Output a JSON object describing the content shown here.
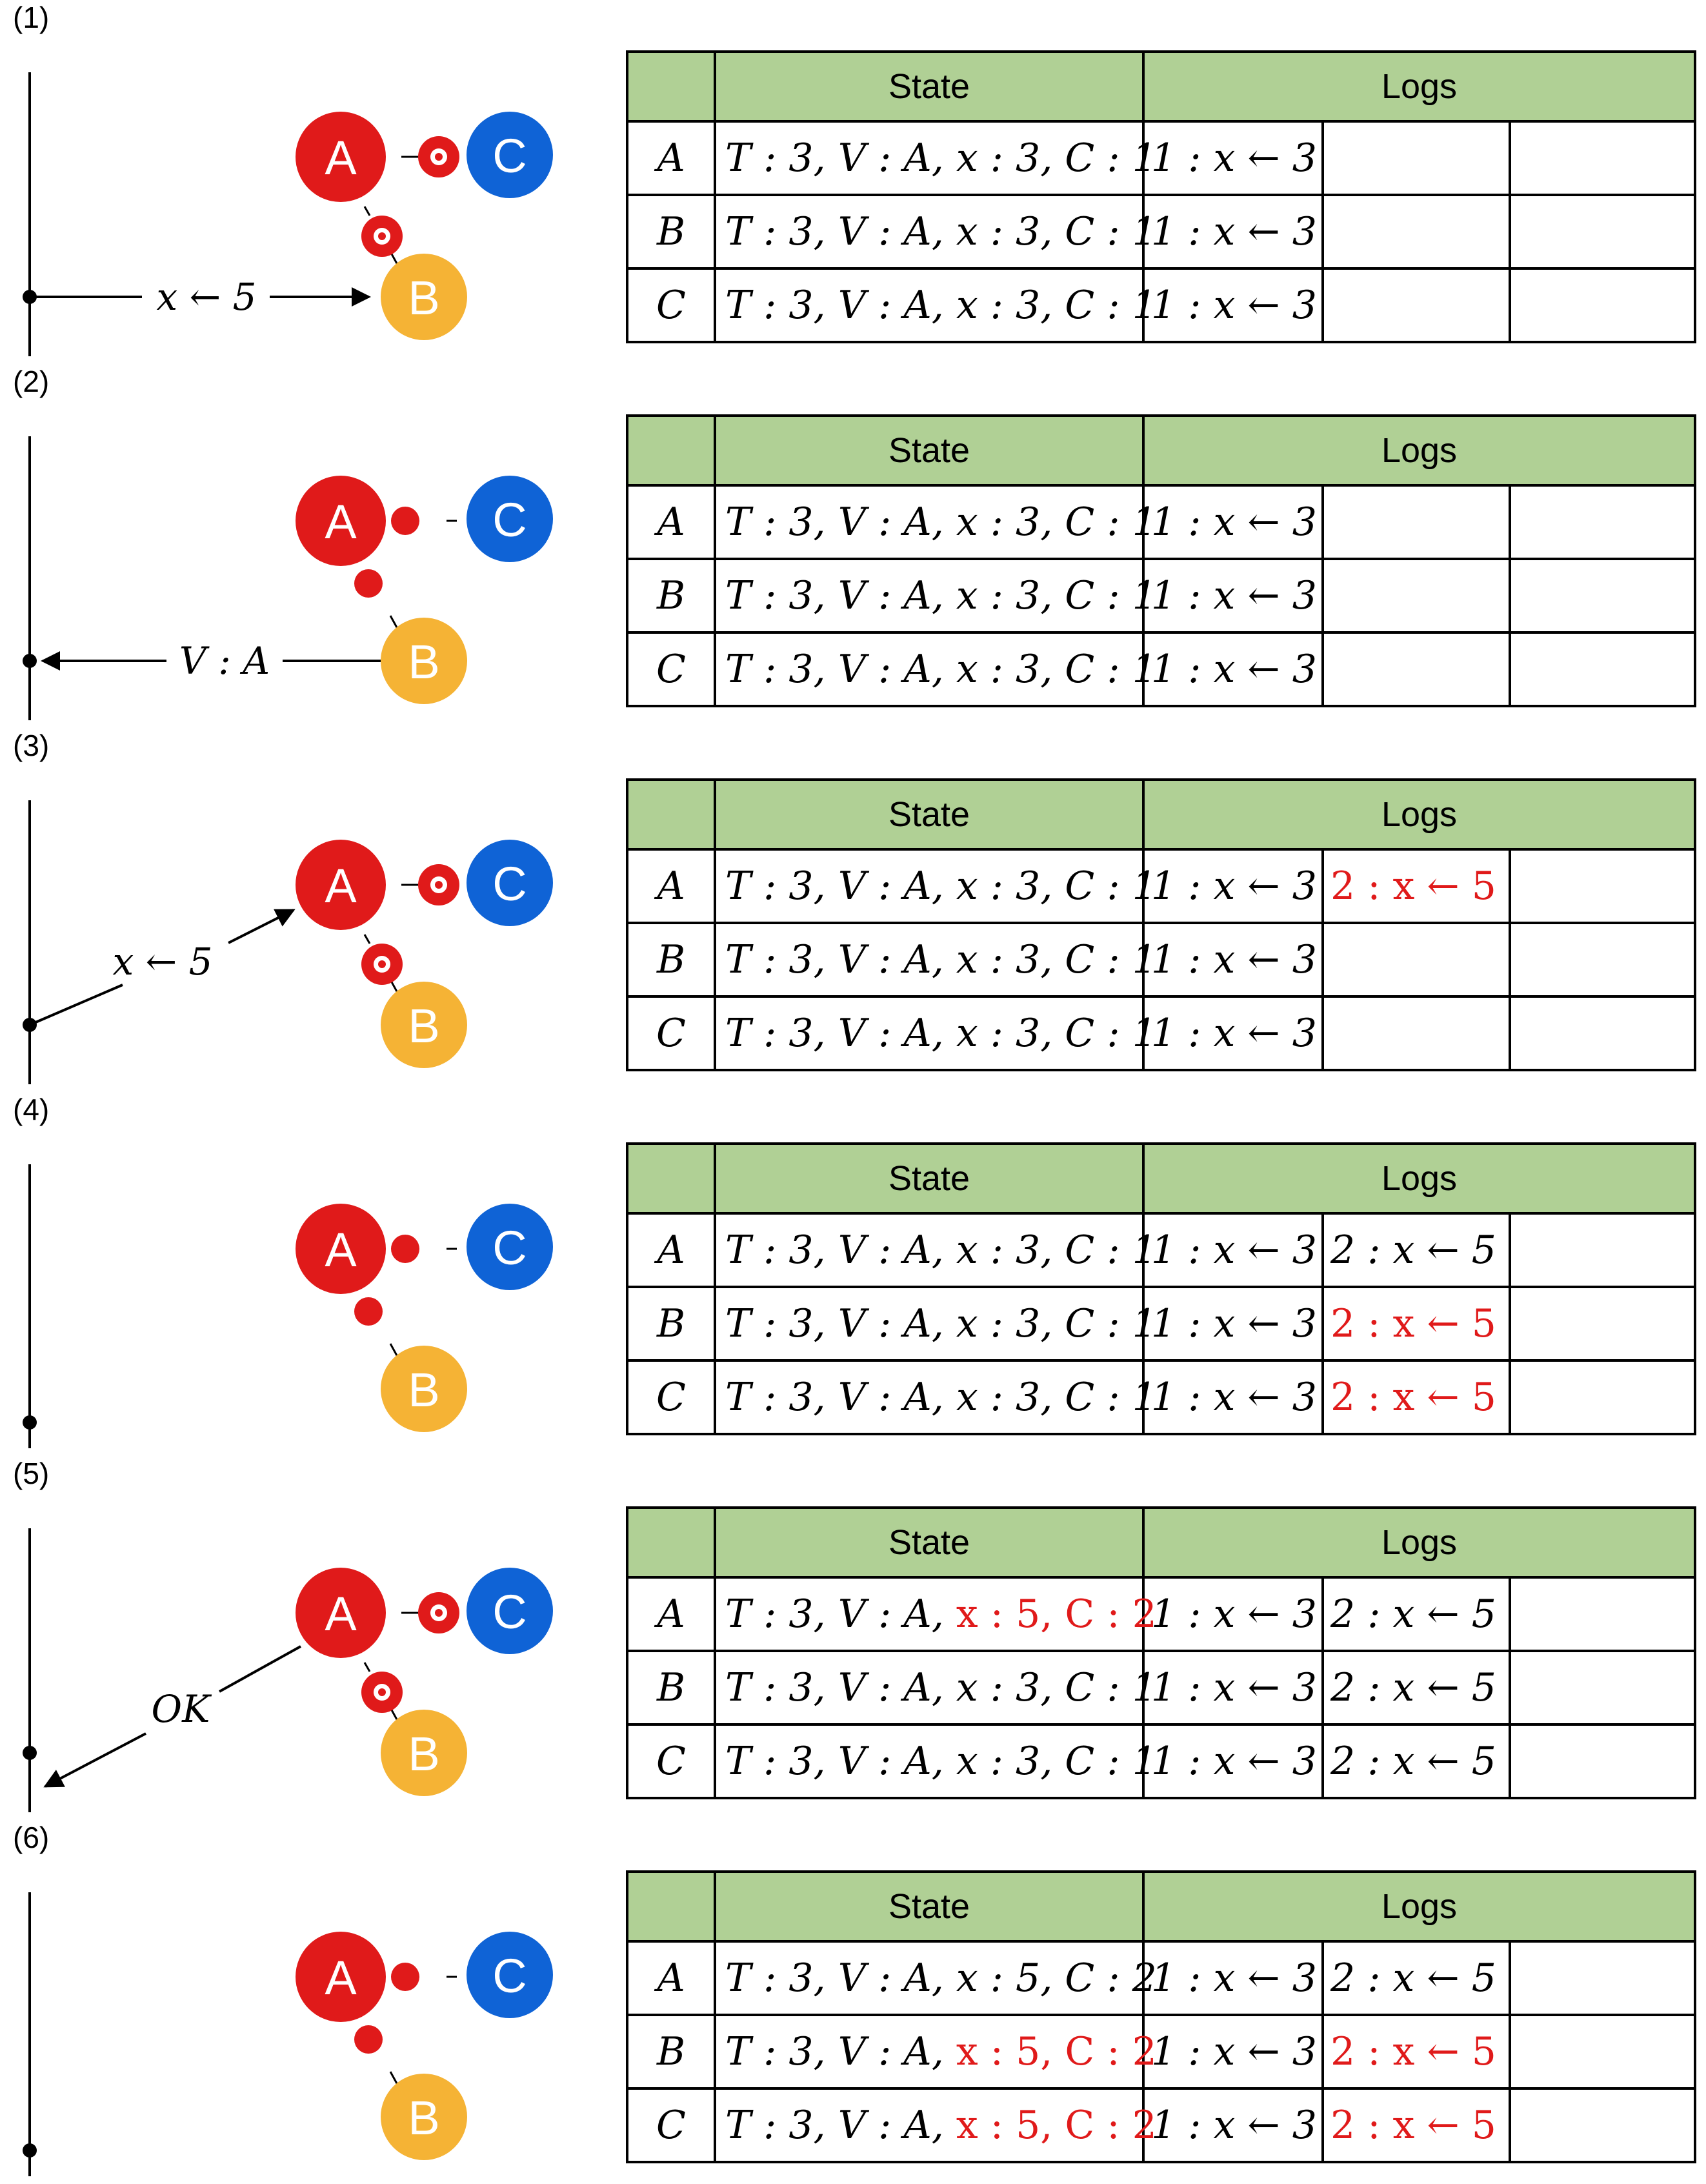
{
  "steps": [
    {
      "label": "(1)",
      "message": {
        "text": "x ← 5",
        "direction": "client-to-B"
      },
      "rings": {
        "ac": true,
        "ab": true
      },
      "rows": [
        {
          "name": "A",
          "state": "T : 3, V : A, x :  3, C : 1",
          "state_red": false,
          "logs": [
            "1 : x ← 3",
            "",
            ""
          ],
          "log_red": [
            false,
            false,
            false
          ]
        },
        {
          "name": "B",
          "state": "T : 3, V : A, x :  3, C : 1",
          "state_red": false,
          "logs": [
            "1 : x ← 3",
            "",
            ""
          ],
          "log_red": [
            false,
            false,
            false
          ]
        },
        {
          "name": "C",
          "state": "T : 3, V : A, x :  3, C : 1",
          "state_red": false,
          "logs": [
            "1 : x ← 3",
            "",
            ""
          ],
          "log_red": [
            false,
            false,
            false
          ]
        }
      ]
    },
    {
      "label": "(2)",
      "message": {
        "text": "V : A",
        "direction": "B-to-client"
      },
      "rings": {
        "ac": false,
        "ab": false
      },
      "rows": [
        {
          "name": "A",
          "state": "T : 3, V : A, x :  3, C : 1",
          "state_red": false,
          "logs": [
            "1 : x ← 3",
            "",
            ""
          ],
          "log_red": [
            false,
            false,
            false
          ]
        },
        {
          "name": "B",
          "state": "T : 3, V : A, x :  3, C : 1",
          "state_red": false,
          "logs": [
            "1 : x ← 3",
            "",
            ""
          ],
          "log_red": [
            false,
            false,
            false
          ]
        },
        {
          "name": "C",
          "state": "T : 3, V : A, x :  3, C : 1",
          "state_red": false,
          "logs": [
            "1 : x ← 3",
            "",
            ""
          ],
          "log_red": [
            false,
            false,
            false
          ]
        }
      ]
    },
    {
      "label": "(3)",
      "message": {
        "text": "x ← 5",
        "direction": "client-to-A"
      },
      "rings": {
        "ac": true,
        "ab": true
      },
      "rows": [
        {
          "name": "A",
          "state": "T : 3, V : A, x :  3, C : 1",
          "state_red": false,
          "logs": [
            "1 : x ← 3",
            "2 : x ← 5",
            ""
          ],
          "log_red": [
            false,
            true,
            false
          ]
        },
        {
          "name": "B",
          "state": "T : 3, V : A, x :  3, C : 1",
          "state_red": false,
          "logs": [
            "1 : x ← 3",
            "",
            ""
          ],
          "log_red": [
            false,
            false,
            false
          ]
        },
        {
          "name": "C",
          "state": "T : 3, V : A, x :  3, C : 1",
          "state_red": false,
          "logs": [
            "1 : x ← 3",
            "",
            ""
          ],
          "log_red": [
            false,
            false,
            false
          ]
        }
      ]
    },
    {
      "label": "(4)",
      "message": null,
      "rings": {
        "ac": false,
        "ab": false
      },
      "rows": [
        {
          "name": "A",
          "state": "T : 3, V : A, x :  3, C : 1",
          "state_red": false,
          "logs": [
            "1 : x ← 3",
            "2 : x ← 5",
            ""
          ],
          "log_red": [
            false,
            false,
            false
          ]
        },
        {
          "name": "B",
          "state": "T : 3, V : A, x :  3, C : 1",
          "state_red": false,
          "logs": [
            "1 : x ← 3",
            "2 : x ← 5",
            ""
          ],
          "log_red": [
            false,
            true,
            false
          ]
        },
        {
          "name": "C",
          "state": "T : 3, V : A, x :  3, C : 1",
          "state_red": false,
          "logs": [
            "1 : x ← 3",
            "2 : x ← 5",
            ""
          ],
          "log_red": [
            false,
            true,
            false
          ]
        }
      ]
    },
    {
      "label": "(5)",
      "message": {
        "text": "OK",
        "direction": "A-to-client"
      },
      "rings": {
        "ac": true,
        "ab": true
      },
      "rows": [
        {
          "name": "A",
          "state_prefix": "T : 3, V : A, ",
          "state_suffix": "x :  5, C : 2",
          "state_red": true,
          "logs": [
            "1 : x ← 3",
            "2 : x ← 5",
            ""
          ],
          "log_red": [
            false,
            false,
            false
          ]
        },
        {
          "name": "B",
          "state": "T : 3, V : A, x :  3, C : 1",
          "state_red": false,
          "logs": [
            "1 : x ← 3",
            "2 : x ← 5",
            ""
          ],
          "log_red": [
            false,
            false,
            false
          ]
        },
        {
          "name": "C",
          "state": "T : 3, V : A, x :  3, C : 1",
          "state_red": false,
          "logs": [
            "1 : x ← 3",
            "2 : x ← 5",
            ""
          ],
          "log_red": [
            false,
            false,
            false
          ]
        }
      ]
    },
    {
      "label": "(6)",
      "message": null,
      "rings": {
        "ac": false,
        "ab": false
      },
      "rows": [
        {
          "name": "A",
          "state": "T : 3, V : A, x :  5, C : 2",
          "state_red": false,
          "logs": [
            "1 : x ← 3",
            "2 : x ← 5",
            ""
          ],
          "log_red": [
            false,
            false,
            false
          ]
        },
        {
          "name": "B",
          "state_prefix": "T : 3, V : A, ",
          "state_suffix": "x :  5, C : 2",
          "state_red": true,
          "logs": [
            "1 : x ← 3",
            "2 : x ← 5",
            ""
          ],
          "log_red": [
            false,
            true,
            false
          ]
        },
        {
          "name": "C",
          "state_prefix": "T : 3, V : A, ",
          "state_suffix": "x :  5, C : 2",
          "state_red": true,
          "logs": [
            "1 : x ← 3",
            "2 : x ← 5",
            ""
          ],
          "log_red": [
            false,
            true,
            false
          ]
        }
      ]
    }
  ],
  "table_headers": {
    "state": "State",
    "logs": "Logs"
  },
  "nodes": {
    "a": "A",
    "b": "B",
    "c": "C"
  },
  "colors": {
    "node_a": "#e01a1a",
    "node_b": "#f5b335",
    "node_c": "#0f63d6",
    "header_bg": "#b0d095",
    "highlight": "#e01a1a"
  }
}
